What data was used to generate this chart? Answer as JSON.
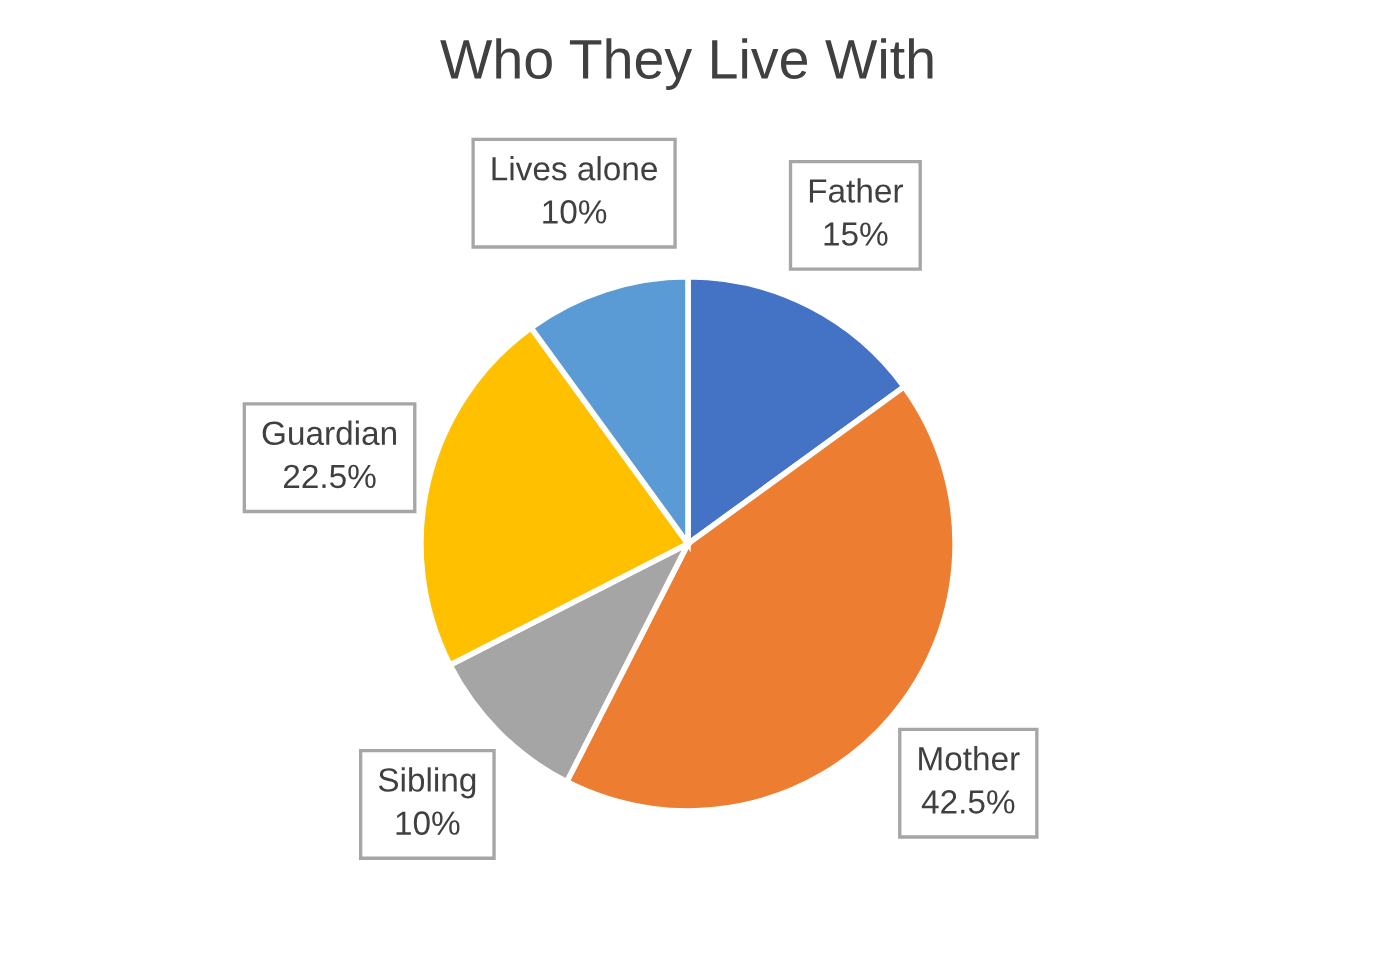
{
  "chart_data": {
    "type": "pie",
    "title": "Who They Live With",
    "categories": [
      "Father",
      "Mother",
      "Sibling",
      "Guardian",
      "Lives alone"
    ],
    "values": [
      15,
      42.5,
      10,
      22.5,
      10
    ],
    "value_labels": [
      "15%",
      "42.5%",
      "10%",
      "22.5%",
      "10%"
    ],
    "colors": [
      "#4472c4",
      "#ed7d31",
      "#a5a5a5",
      "#ffc000",
      "#5b9bd5"
    ],
    "legend": false
  }
}
